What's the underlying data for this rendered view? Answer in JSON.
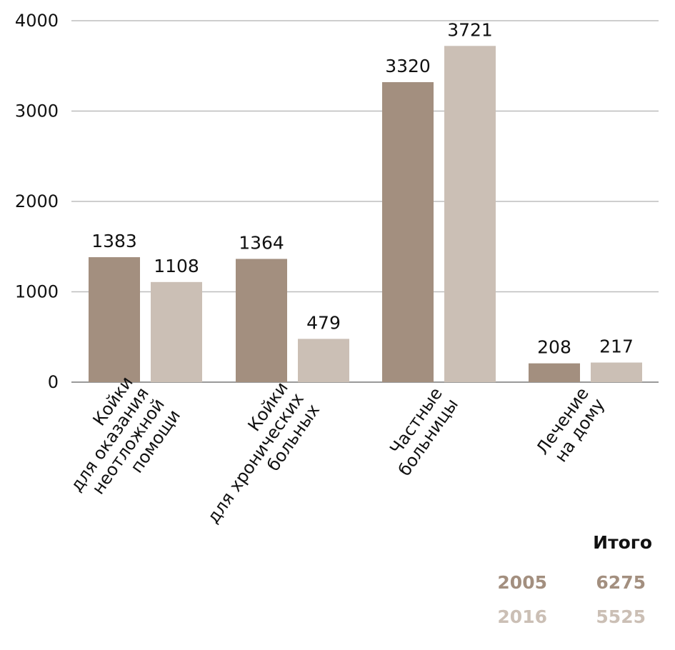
{
  "chart_data": {
    "type": "bar",
    "categories": [
      [
        "Койки",
        "для оказания",
        "неотложной",
        "помощи"
      ],
      [
        "Койки",
        "для хронических",
        "больных"
      ],
      [
        "Частные",
        "больницы"
      ],
      [
        "Лечение",
        "на дому"
      ]
    ],
    "series": [
      {
        "key": "2005",
        "values": [
          1383,
          1364,
          3320,
          208
        ],
        "color": "#a38f7f"
      },
      {
        "key": "2016",
        "values": [
          1108,
          479,
          3721,
          217
        ],
        "color": "#cbbfb5"
      }
    ],
    "y_ticks": [
      "0",
      "1000",
      "2000",
      "3000",
      "4000"
    ],
    "ylim": [
      0,
      4000
    ],
    "grid": true
  },
  "totals": {
    "title": "Итого",
    "rows": [
      {
        "year": "2005",
        "total": "6275",
        "color": "#a38f7f"
      },
      {
        "year": "2016",
        "total": "5525",
        "color": "#cbbfb5"
      }
    ]
  }
}
